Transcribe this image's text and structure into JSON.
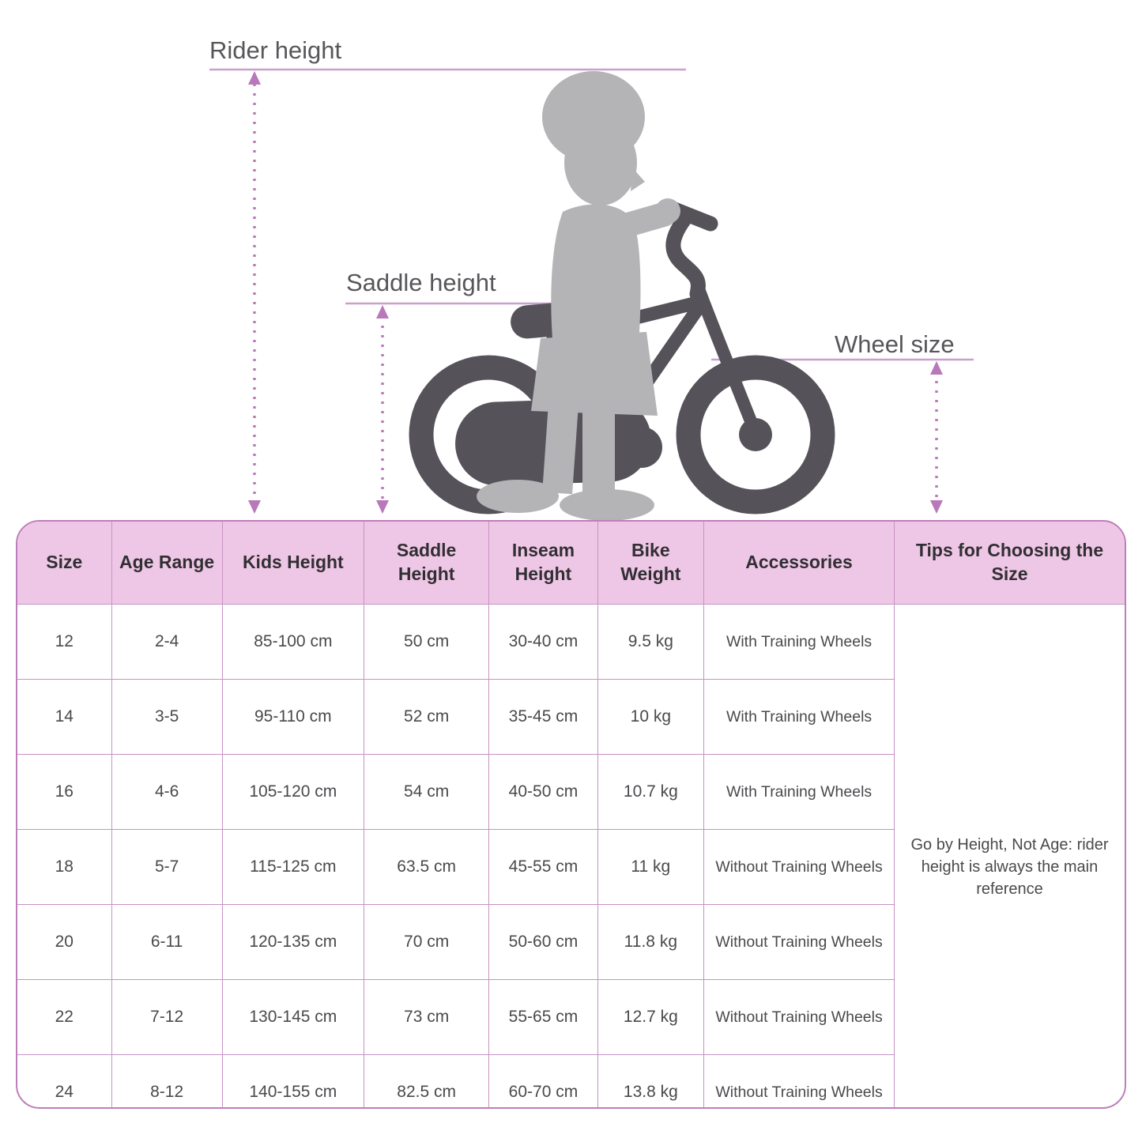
{
  "diagram": {
    "rider_height_label": "Rider height",
    "saddle_height_label": "Saddle height",
    "wheel_size_label": "Wheel size"
  },
  "table": {
    "headers": [
      "Size",
      "Age Range",
      "Kids Height",
      "Saddle Height",
      "Inseam Height",
      "Bike Weight",
      "Accessories",
      "Tips for Choosing the Size"
    ],
    "rows": [
      [
        "12",
        "2-4",
        "85-100 cm",
        "50 cm",
        "30-40 cm",
        "9.5 kg",
        "With Training Wheels"
      ],
      [
        "14",
        "3-5",
        "95-110 cm",
        "52 cm",
        "35-45 cm",
        "10 kg",
        "With Training Wheels"
      ],
      [
        "16",
        "4-6",
        "105-120 cm",
        "54 cm",
        "40-50 cm",
        "10.7 kg",
        "With Training Wheels"
      ],
      [
        "18",
        "5-7",
        "115-125 cm",
        "63.5 cm",
        "45-55 cm",
        "11 kg",
        "Without Training Wheels"
      ],
      [
        "20",
        "6-11",
        "120-135 cm",
        "70 cm",
        "50-60 cm",
        "11.8 kg",
        "Without Training Wheels"
      ],
      [
        "22",
        "7-12",
        "130-145 cm",
        "73 cm",
        "55-65 cm",
        "12.7 kg",
        "Without Training Wheels"
      ],
      [
        "24",
        "8-12",
        "140-155 cm",
        "82.5 cm",
        "60-70 cm",
        "13.8 kg",
        "Without Training Wheels"
      ]
    ],
    "tips": "Go by Height, Not Age: rider height is always the main reference"
  },
  "chart_data": {
    "type": "table",
    "title": "Kids bike size chart",
    "columns": [
      "Size",
      "Age Range",
      "Kids Height",
      "Saddle Height",
      "Inseam Height",
      "Bike Weight",
      "Accessories",
      "Tips for Choosing the Size"
    ],
    "rows": [
      {
        "size": 12,
        "age_range": "2-4",
        "kids_height_cm": "85-100",
        "saddle_height_cm": 50,
        "inseam_height_cm": "30-40",
        "bike_weight_kg": 9.5,
        "accessories": "With Training Wheels"
      },
      {
        "size": 14,
        "age_range": "3-5",
        "kids_height_cm": "95-110",
        "saddle_height_cm": 52,
        "inseam_height_cm": "35-45",
        "bike_weight_kg": 10,
        "accessories": "With Training Wheels"
      },
      {
        "size": 16,
        "age_range": "4-6",
        "kids_height_cm": "105-120",
        "saddle_height_cm": 54,
        "inseam_height_cm": "40-50",
        "bike_weight_kg": 10.7,
        "accessories": "With Training Wheels"
      },
      {
        "size": 18,
        "age_range": "5-7",
        "kids_height_cm": "115-125",
        "saddle_height_cm": 63.5,
        "inseam_height_cm": "45-55",
        "bike_weight_kg": 11,
        "accessories": "Without Training Wheels"
      },
      {
        "size": 20,
        "age_range": "6-11",
        "kids_height_cm": "120-135",
        "saddle_height_cm": 70,
        "inseam_height_cm": "50-60",
        "bike_weight_kg": 11.8,
        "accessories": "Without Training Wheels"
      },
      {
        "size": 22,
        "age_range": "7-12",
        "kids_height_cm": "130-145",
        "saddle_height_cm": 73,
        "inseam_height_cm": "55-65",
        "bike_weight_kg": 12.7,
        "accessories": "Without Training Wheels"
      },
      {
        "size": 24,
        "age_range": "8-12",
        "kids_height_cm": "140-155",
        "saddle_height_cm": 82.5,
        "inseam_height_cm": "60-70",
        "bike_weight_kg": 13.8,
        "accessories": "Without Training Wheels"
      }
    ],
    "shared_note": "Go by Height, Not Age: rider height is always the main reference"
  },
  "colors": {
    "header_bg": "#efc7e6",
    "cell_border": "#c792c5",
    "outer_border": "#bd7fbb",
    "measure_line": "#c9a0cc",
    "arrow": "#b878ba",
    "bike_silhouette": "#55525a",
    "child_silhouette": "#b4b3b6",
    "label_text": "#57565a",
    "header_text": "#312f33",
    "cell_text": "#4a494d"
  }
}
